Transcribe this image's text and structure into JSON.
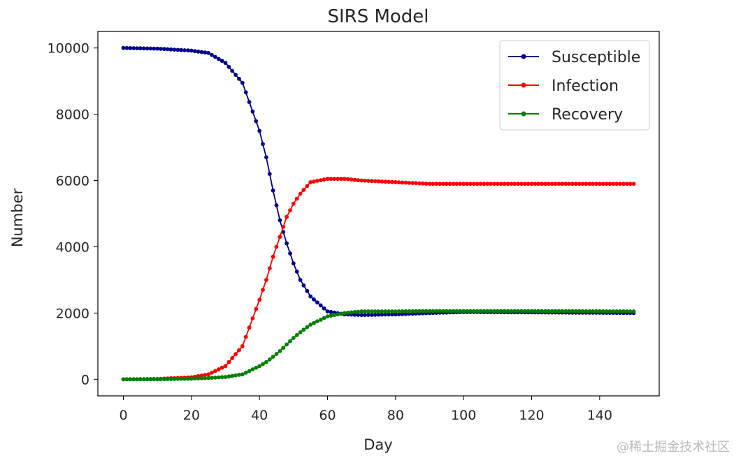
{
  "chart_data": {
    "type": "line",
    "title": "SIRS Model",
    "xlabel": "Day",
    "ylabel": "Number",
    "xlim": [
      -7.5,
      157.5
    ],
    "ylim": [
      -500,
      10500
    ],
    "xticks": [
      "0",
      "20",
      "40",
      "60",
      "80",
      "100",
      "120",
      "140"
    ],
    "yticks": [
      "0",
      "2000",
      "4000",
      "6000",
      "8000",
      "10000"
    ],
    "grid": false,
    "legend_position": "top-right",
    "x": [
      0,
      10,
      20,
      25,
      30,
      35,
      40,
      42,
      44,
      46,
      48,
      50,
      52,
      55,
      60,
      65,
      70,
      80,
      90,
      100,
      120,
      150
    ],
    "series": [
      {
        "name": "Susceptible",
        "color": "#00008b",
        "values": [
          10000,
          9980,
          9920,
          9850,
          9550,
          8950,
          7500,
          6700,
          5700,
          4800,
          4100,
          3500,
          3000,
          2500,
          2050,
          1960,
          1940,
          1960,
          2000,
          2030,
          2020,
          2000
        ]
      },
      {
        "name": "Infection",
        "color": "#ff0000",
        "values": [
          0,
          10,
          60,
          150,
          400,
          1000,
          2400,
          3000,
          3700,
          4300,
          4900,
          5300,
          5600,
          5950,
          6050,
          6050,
          6000,
          5950,
          5900,
          5900,
          5900,
          5900
        ]
      },
      {
        "name": "Recovery",
        "color": "#008000",
        "values": [
          0,
          0,
          20,
          40,
          70,
          150,
          400,
          520,
          680,
          850,
          1050,
          1250,
          1420,
          1650,
          1900,
          2000,
          2050,
          2050,
          2060,
          2060,
          2060,
          2050
        ]
      }
    ]
  },
  "watermark": "@稀土掘金技术社区"
}
